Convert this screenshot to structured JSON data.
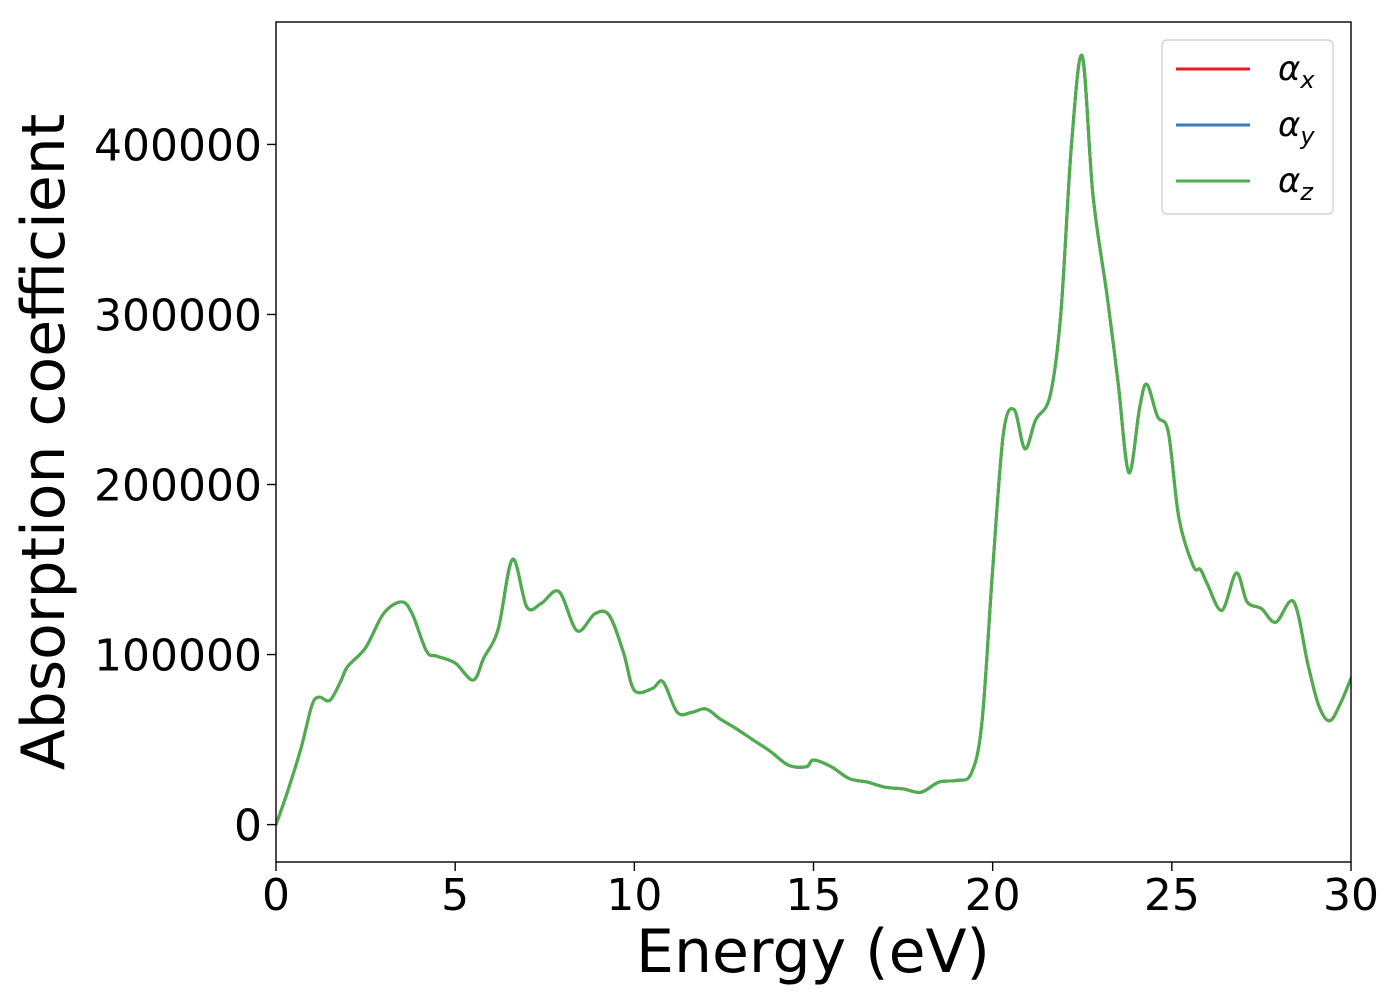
{
  "chart_data": {
    "type": "line",
    "xlabel": "Energy (eV)",
    "ylabel": "Absorption coefficient",
    "xlim": [
      0,
      30
    ],
    "ylim": [
      -22000,
      472000
    ],
    "xticks": [
      0,
      5,
      10,
      15,
      20,
      25,
      30
    ],
    "xtick_labels": [
      "0",
      "5",
      "10",
      "15",
      "20",
      "25",
      "30"
    ],
    "yticks": [
      0,
      100000,
      200000,
      300000,
      400000
    ],
    "ytick_labels": [
      "0",
      "100000",
      "200000",
      "300000",
      "400000"
    ],
    "grid": false,
    "legend_position": "top-right",
    "x": [
      0,
      0.3,
      0.7,
      1.0,
      1.2,
      1.5,
      1.8,
      2.0,
      2.5,
      3.0,
      3.5,
      3.8,
      4.2,
      4.5,
      5.0,
      5.5,
      5.8,
      6.2,
      6.6,
      7.0,
      7.4,
      7.9,
      8.4,
      8.9,
      9.3,
      9.7,
      10.0,
      10.5,
      10.8,
      11.2,
      11.6,
      12.0,
      12.4,
      12.8,
      13.3,
      13.8,
      14.3,
      14.8,
      15.0,
      15.5,
      16.0,
      16.5,
      17.0,
      17.5,
      18.0,
      18.5,
      19.0,
      19.4,
      19.7,
      20.0,
      20.3,
      20.6,
      20.9,
      21.2,
      21.6,
      21.9,
      22.2,
      22.5,
      22.8,
      23.2,
      23.5,
      23.8,
      24.1,
      24.3,
      24.6,
      24.9,
      25.2,
      25.6,
      25.8,
      26.0,
      26.4,
      26.8,
      27.1,
      27.5,
      27.9,
      28.4,
      28.8,
      29.1,
      29.4,
      29.7,
      30.0
    ],
    "series": [
      {
        "name": "α_x",
        "color": "#e41a1c",
        "values": [
          0,
          18000,
          45000,
          70000,
          75000,
          73000,
          84000,
          93000,
          104000,
          124000,
          131000,
          124000,
          102000,
          99000,
          95000,
          85000,
          98000,
          115000,
          156000,
          128000,
          130000,
          137000,
          114000,
          124000,
          123000,
          101000,
          79000,
          80000,
          84000,
          66000,
          66000,
          68000,
          62000,
          57000,
          50000,
          43000,
          35000,
          34000,
          38000,
          34000,
          27000,
          25000,
          22000,
          21000,
          19000,
          25000,
          26000,
          30000,
          60000,
          150000,
          230000,
          244000,
          221000,
          238000,
          252000,
          300000,
          400000,
          452000,
          370000,
          310000,
          260000,
          207000,
          245000,
          259000,
          240000,
          231000,
          180000,
          152000,
          150000,
          141000,
          126000,
          148000,
          131000,
          127000,
          119000,
          131000,
          94000,
          70000,
          61000,
          71000,
          86000
        ]
      },
      {
        "name": "α_y",
        "color": "#377eb8",
        "values": [
          0,
          18000,
          45000,
          70000,
          75000,
          73000,
          84000,
          93000,
          104000,
          124000,
          131000,
          124000,
          102000,
          99000,
          95000,
          85000,
          98000,
          115000,
          156000,
          128000,
          130000,
          137000,
          114000,
          124000,
          123000,
          101000,
          79000,
          80000,
          84000,
          66000,
          66000,
          68000,
          62000,
          57000,
          50000,
          43000,
          35000,
          34000,
          38000,
          34000,
          27000,
          25000,
          22000,
          21000,
          19000,
          25000,
          26000,
          30000,
          60000,
          150000,
          230000,
          244000,
          221000,
          238000,
          252000,
          300000,
          400000,
          452000,
          370000,
          310000,
          260000,
          207000,
          245000,
          259000,
          240000,
          231000,
          180000,
          152000,
          150000,
          141000,
          126000,
          148000,
          131000,
          127000,
          119000,
          131000,
          94000,
          70000,
          61000,
          71000,
          86000
        ]
      },
      {
        "name": "α_z",
        "color": "#4daf4a",
        "values": [
          0,
          18000,
          45000,
          70000,
          75000,
          73000,
          84000,
          93000,
          104000,
          124000,
          131000,
          124000,
          102000,
          99000,
          95000,
          85000,
          98000,
          115000,
          156000,
          128000,
          130000,
          137000,
          114000,
          124000,
          123000,
          101000,
          79000,
          80000,
          84000,
          66000,
          66000,
          68000,
          62000,
          57000,
          50000,
          43000,
          35000,
          34000,
          38000,
          34000,
          27000,
          25000,
          22000,
          21000,
          19000,
          25000,
          26000,
          30000,
          60000,
          150000,
          230000,
          244000,
          221000,
          238000,
          252000,
          300000,
          400000,
          452000,
          370000,
          310000,
          260000,
          207000,
          245000,
          259000,
          240000,
          231000,
          180000,
          152000,
          150000,
          141000,
          126000,
          148000,
          131000,
          127000,
          119000,
          131000,
          94000,
          70000,
          61000,
          71000,
          86000
        ]
      }
    ],
    "legend": [
      {
        "symbol": "α",
        "subscript": "x",
        "color": "#e41a1c"
      },
      {
        "symbol": "α",
        "subscript": "y",
        "color": "#377eb8"
      },
      {
        "symbol": "α",
        "subscript": "z",
        "color": "#4daf4a"
      }
    ]
  }
}
